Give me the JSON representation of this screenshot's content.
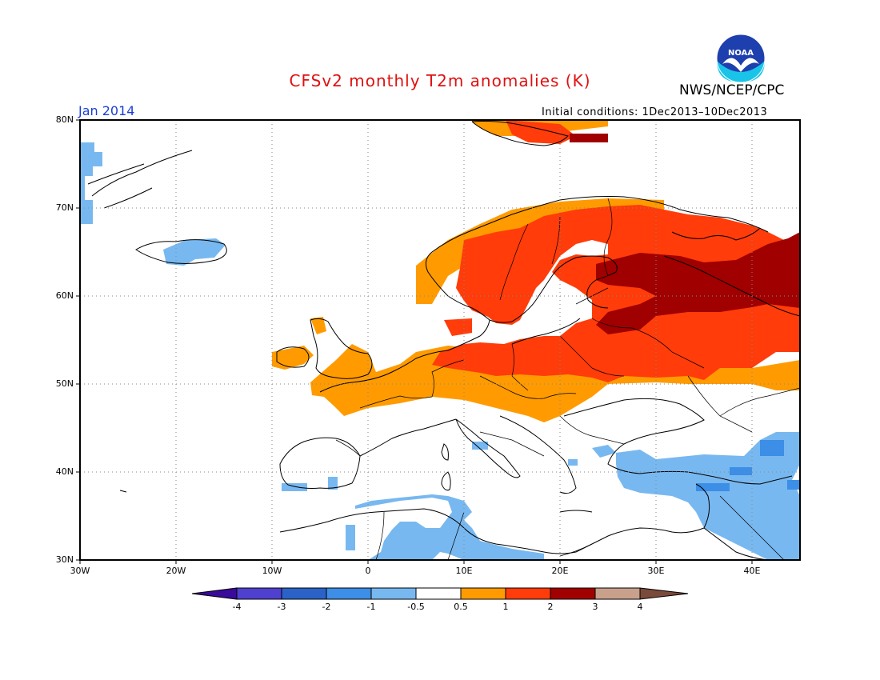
{
  "header": {
    "title": "CFSv2 monthly T2m anomalies (K)",
    "agency": "NWS/NCEP/CPC",
    "logo_text": "NOAA",
    "month": "Jan 2014",
    "initial_conditions": "Initial conditions: 1Dec2013–10Dec2013"
  },
  "map": {
    "region": "Europe",
    "lat_labels": [
      "80N",
      "70N",
      "60N",
      "50N",
      "40N",
      "30N"
    ],
    "lon_labels": [
      "30W",
      "20W",
      "10W",
      "0",
      "10E",
      "20E",
      "30E",
      "40E"
    ],
    "anomaly_regions": [
      {
        "name": "northwest-russia",
        "category": "2 to 3"
      },
      {
        "name": "scandinavia-baltic",
        "category": "1 to 2"
      },
      {
        "name": "central-europe",
        "category": "0.5 to 1"
      },
      {
        "name": "svalbard",
        "category": "1 to 3"
      },
      {
        "name": "turkey-middle-east",
        "category": "-1 to -0.5"
      },
      {
        "name": "north-africa",
        "category": "-1 to -0.5"
      },
      {
        "name": "greenland-iceland",
        "category": "-1 to -0.5"
      }
    ]
  },
  "colorbar": {
    "labels": [
      "-4",
      "-3",
      "-2",
      "-1",
      "-0.5",
      "0.5",
      "1",
      "2",
      "3",
      "4"
    ],
    "colors": [
      "#3a0a9a",
      "#5040d0",
      "#2a62c8",
      "#3c8ee6",
      "#78b8f0",
      "#ffffff",
      "#ff9b00",
      "#ff3c0a",
      "#a00000",
      "#c8a08c",
      "#7a4a3a"
    ]
  }
}
